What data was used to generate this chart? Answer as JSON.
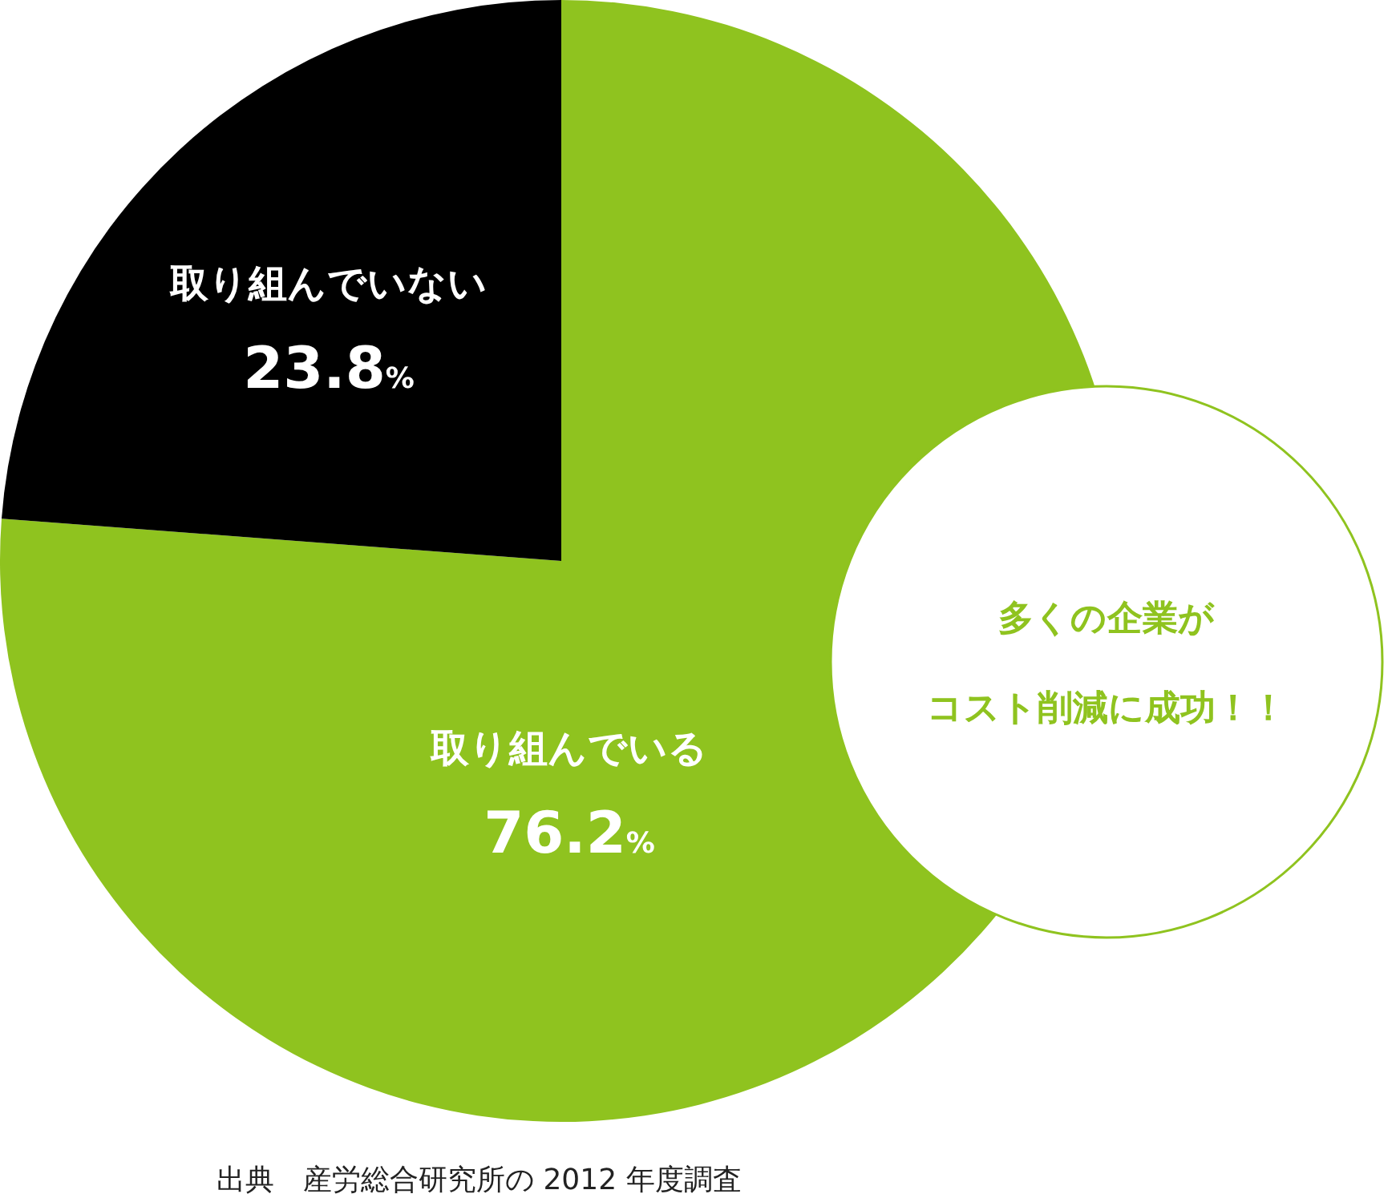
{
  "chart_data": {
    "type": "pie",
    "categories": [
      "取り組んでいる",
      "取り組んでいない"
    ],
    "values": [
      76.2,
      23.8
    ],
    "value_labels": [
      "76.2%",
      "23.8%"
    ],
    "colors": [
      "#8fc31f",
      "#000000"
    ],
    "annotations": [
      "多くの企業が",
      "コスト削減に成功！！",
      "出典　産労総合研究所の 2012 年度調査"
    ]
  }
}
